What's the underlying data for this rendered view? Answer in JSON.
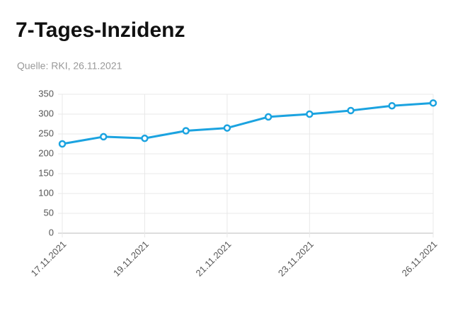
{
  "chart_data": {
    "type": "line",
    "title": "7-Tages-Inzidenz",
    "subtitle": "Quelle: RKI, 26.11.2021",
    "categories": [
      "17.11.2021",
      null,
      "19.11.2021",
      null,
      "21.11.2021",
      null,
      "23.11.2021",
      null,
      null,
      "26.11.2021"
    ],
    "series": [
      {
        "name": "7-Tages-Inzidenz",
        "color": "#1ba3e0",
        "values": [
          225,
          243,
          239,
          258,
          265,
          293,
          300,
          309,
          321,
          328
        ]
      }
    ],
    "ylim": [
      0,
      350
    ],
    "yticks": [
      0,
      50,
      100,
      150,
      200,
      250,
      300,
      350
    ],
    "grid": true
  }
}
